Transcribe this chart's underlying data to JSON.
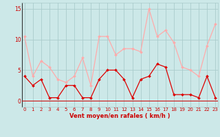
{
  "hours": [
    0,
    1,
    2,
    3,
    4,
    5,
    6,
    7,
    8,
    9,
    10,
    11,
    12,
    13,
    14,
    15,
    16,
    17,
    18,
    19,
    20,
    21,
    22,
    23
  ],
  "vent_moyen": [
    4,
    2.5,
    3.5,
    0.5,
    0.5,
    2.5,
    2.5,
    0.5,
    0.5,
    3.5,
    5,
    5,
    3.5,
    0.5,
    3.5,
    4,
    6,
    5.5,
    1,
    1,
    1,
    0.5,
    4,
    0.5
  ],
  "rafales": [
    10.5,
    4,
    6.5,
    5.5,
    3.5,
    3,
    4,
    7,
    2.5,
    10.5,
    10.5,
    7.5,
    8.5,
    8.5,
    8,
    15,
    10.5,
    11.5,
    9.5,
    5.5,
    5,
    4,
    9,
    12.5
  ],
  "color_moyen": "#dd0000",
  "color_rafales": "#ffaaaa",
  "bg_color": "#cce8e8",
  "grid_color": "#aacccc",
  "axis_color": "#cc0000",
  "xlabel": "Vent moyen/en rafales ( km/h )",
  "ylim": [
    -1,
    16
  ],
  "yticks": [
    0,
    5,
    10,
    15
  ],
  "xlim": [
    -0.3,
    23.3
  ],
  "xlabel_fontsize": 6.0,
  "tick_fontsize": 5.0
}
